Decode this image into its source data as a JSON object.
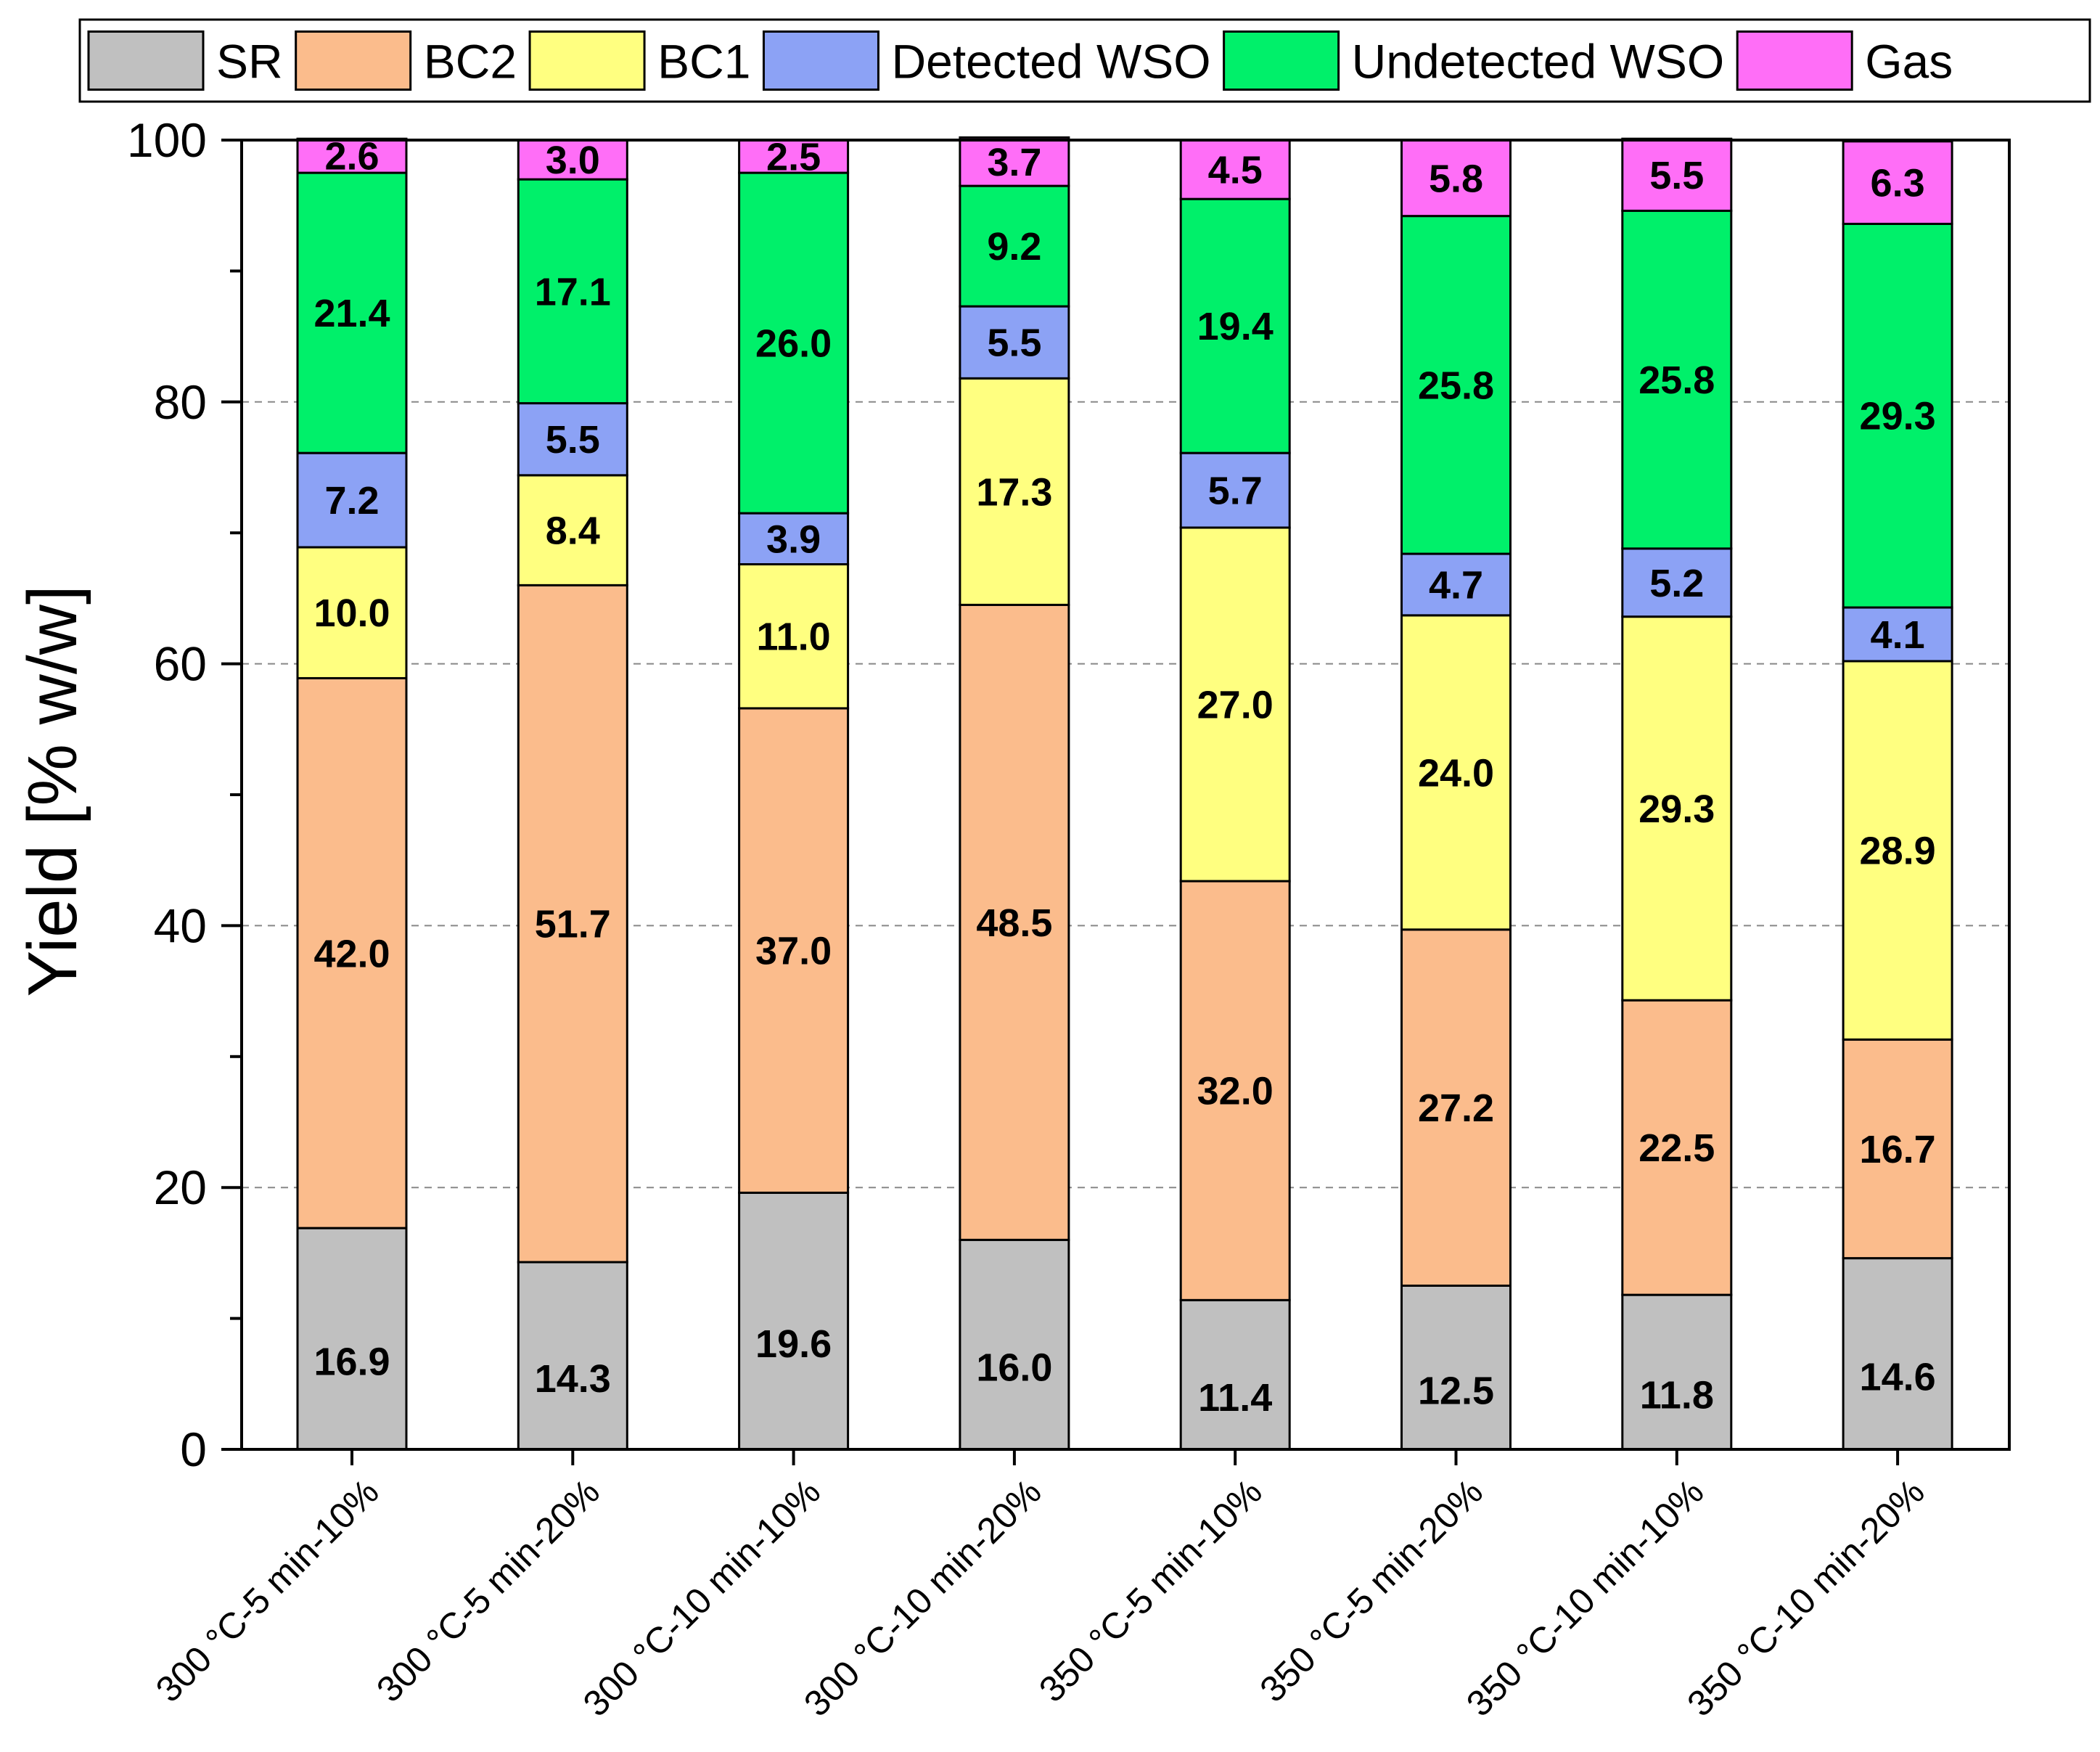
{
  "chart_data": {
    "type": "bar",
    "stacked": true,
    "title": "",
    "xlabel": "",
    "ylabel": "Yield [% w/w]",
    "ylim": [
      0,
      100
    ],
    "yticks": [
      0,
      20,
      40,
      60,
      80,
      100
    ],
    "grid": "horizontal-dashed",
    "legend_position": "top",
    "categories": [
      "300 °C-5 min-10%",
      "300 °C-5 min-20%",
      "300 °C-10 min-10%",
      "300 °C-10 min-20%",
      "350 °C-5 min-10%",
      "350 °C-5 min-20%",
      "350 °C-10 min-10%",
      "350 °C-10 min-20%"
    ],
    "series": [
      {
        "name": "SR",
        "color": "#c0c0c0",
        "values": [
          16.9,
          14.3,
          19.6,
          16.0,
          11.4,
          12.5,
          11.8,
          14.6
        ]
      },
      {
        "name": "BC2",
        "color": "#fbbc8c",
        "values": [
          42.0,
          51.7,
          37.0,
          48.5,
          32.0,
          27.2,
          22.5,
          16.7
        ]
      },
      {
        "name": "BC1",
        "color": "#ffff80",
        "values": [
          10.0,
          8.4,
          11.0,
          17.3,
          27.0,
          24.0,
          29.3,
          28.9
        ]
      },
      {
        "name": "Detected WSO",
        "color": "#8ca2f5",
        "values": [
          7.2,
          5.5,
          3.9,
          5.5,
          5.7,
          4.7,
          5.2,
          4.1
        ]
      },
      {
        "name": "Undetected WSO",
        "color": "#00f06a",
        "values": [
          21.4,
          17.1,
          26.0,
          9.2,
          19.4,
          25.8,
          25.8,
          29.3
        ]
      },
      {
        "name": "Gas",
        "color": "#ff6ef7",
        "values": [
          2.6,
          3.0,
          2.5,
          3.7,
          4.5,
          5.8,
          5.5,
          6.3
        ]
      }
    ]
  }
}
